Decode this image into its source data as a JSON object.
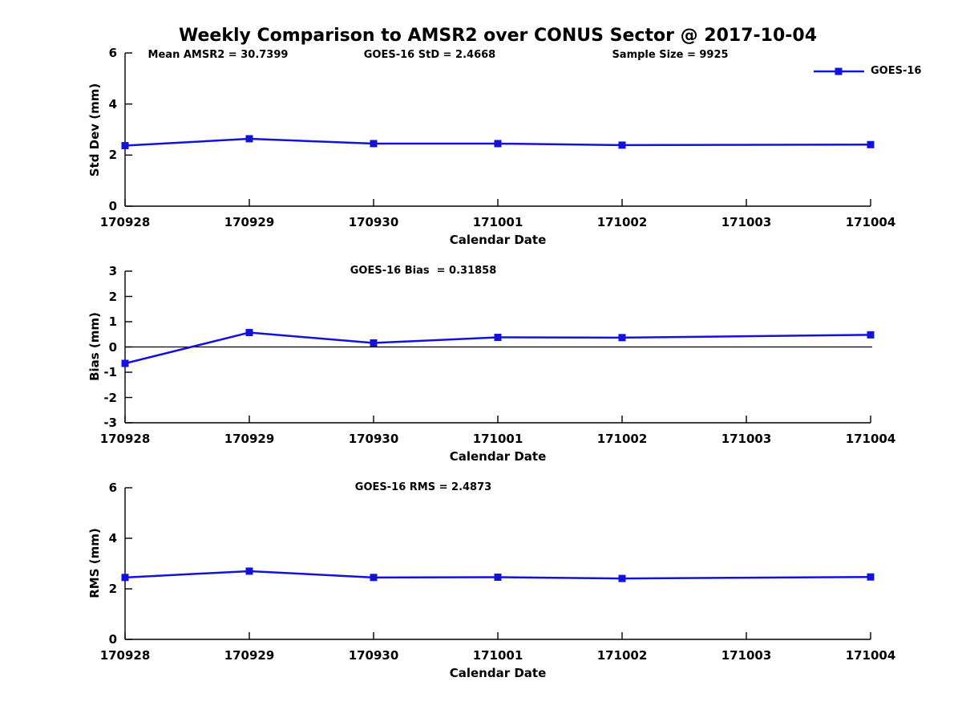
{
  "title": "Weekly Comparison to AMSR2 over CONUS Sector @ 2017-10-04",
  "legend": {
    "label": "GOES-16"
  },
  "colors": {
    "series": "#1212d9",
    "axis": "#000000",
    "text": "#000000",
    "background": "#ffffff"
  },
  "x_axis": {
    "label": "Calendar Date",
    "categories": [
      "170928",
      "170929",
      "170930",
      "171001",
      "171002",
      "171003",
      "171004"
    ]
  },
  "chart_data": [
    {
      "type": "line",
      "ylabel": "Std Dev (mm)",
      "xlabel": "Calendar Date",
      "ylim": [
        0,
        6
      ],
      "yticks": [
        0,
        2,
        4,
        6
      ],
      "x": [
        "170928",
        "170929",
        "170930",
        "171001",
        "171002",
        "171003",
        "171004"
      ],
      "series": [
        {
          "name": "GOES-16",
          "values": [
            2.37,
            2.64,
            2.45,
            2.45,
            2.39,
            null,
            2.41
          ]
        }
      ],
      "zero_line": false,
      "legend_position": "top-right",
      "grid": false,
      "annotations": {
        "left": "Mean AMSR2 = 30.7399",
        "center": "GOES-16 StD = 2.4668",
        "right": "Sample Size = 9925"
      }
    },
    {
      "type": "line",
      "ylabel": "Bias (mm)",
      "xlabel": "Calendar Date",
      "ylim": [
        -3,
        3
      ],
      "yticks": [
        -3,
        -2,
        -1,
        0,
        1,
        2,
        3
      ],
      "x": [
        "170928",
        "170929",
        "170930",
        "171001",
        "171002",
        "171003",
        "171004"
      ],
      "series": [
        {
          "name": "GOES-16",
          "values": [
            -0.65,
            0.57,
            0.16,
            0.38,
            0.37,
            null,
            0.48
          ]
        }
      ],
      "zero_line": true,
      "grid": false,
      "annotations": {
        "center": "GOES-16 Bias  = 0.31858"
      }
    },
    {
      "type": "line",
      "ylabel": "RMS (mm)",
      "xlabel": "Calendar Date",
      "ylim": [
        0,
        6
      ],
      "yticks": [
        0,
        2,
        4,
        6
      ],
      "x": [
        "170928",
        "170929",
        "170930",
        "171001",
        "171002",
        "171003",
        "171004"
      ],
      "series": [
        {
          "name": "GOES-16",
          "values": [
            2.45,
            2.7,
            2.45,
            2.46,
            2.41,
            null,
            2.47
          ]
        }
      ],
      "zero_line": false,
      "grid": false,
      "annotations": {
        "center": "GOES-16 RMS = 2.4873"
      }
    }
  ]
}
